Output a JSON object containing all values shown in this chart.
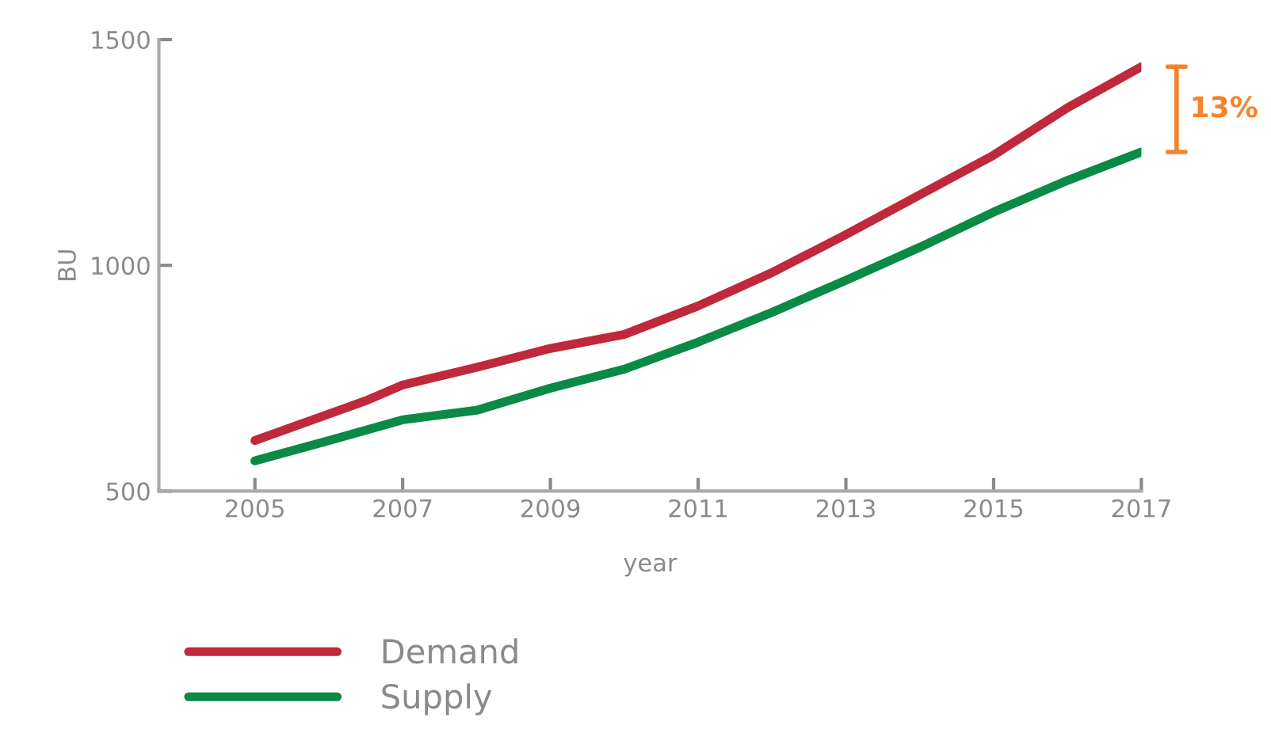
{
  "chart_data": {
    "type": "line",
    "xlabel": "year",
    "ylabel": "BU",
    "x": [
      2005,
      2006.5,
      2007,
      2008,
      2009,
      2010,
      2011,
      2012,
      2013,
      2014,
      2015,
      2016,
      2017
    ],
    "series": [
      {
        "name": "Demand",
        "color": "#c0283c",
        "values": [
          612,
          700,
          735,
          774,
          816,
          847,
          910,
          984,
          1068,
          1156,
          1244,
          1349,
          1440
        ]
      },
      {
        "name": "Supply",
        "color": "#0a8a44",
        "x": [
          2005,
          2006,
          2007,
          2008,
          2009,
          2010,
          2011,
          2012,
          2013,
          2014,
          2015,
          2016,
          2017
        ],
        "values": [
          567,
          612,
          658,
          679,
          728,
          770,
          830,
          896,
          967,
          1040,
          1118,
          1188,
          1251
        ]
      }
    ],
    "xlim": [
      2003.7,
      2017
    ],
    "ylim": [
      500,
      1500
    ],
    "xticks": [
      2005,
      2007,
      2009,
      2011,
      2013,
      2015,
      2017
    ],
    "yticks": [
      500,
      1000,
      1500
    ],
    "annotations": [
      "13%"
    ],
    "grid": false,
    "legend": "bottom",
    "marker": "none",
    "line_style": "solid"
  }
}
